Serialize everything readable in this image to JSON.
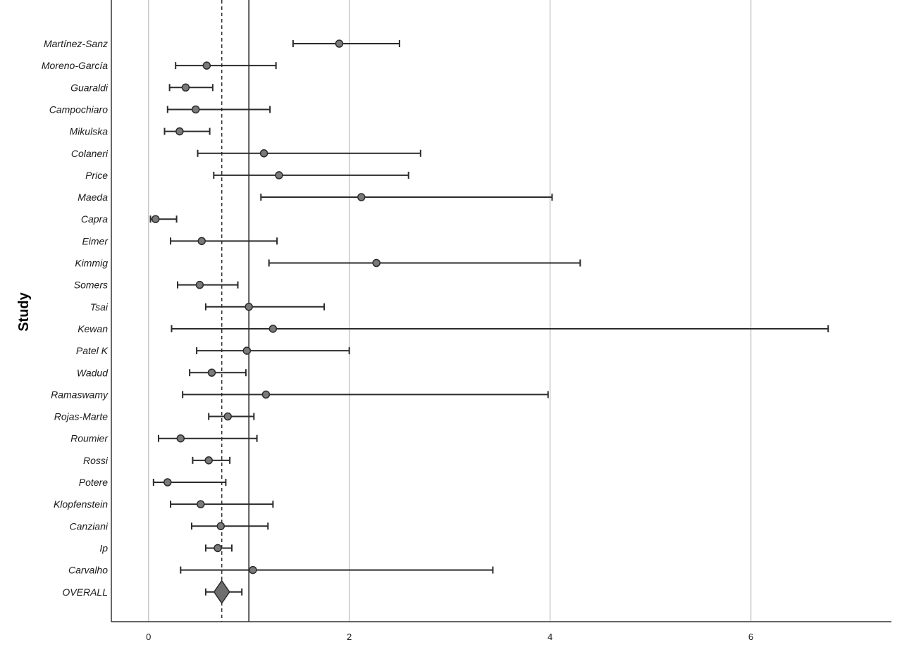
{
  "chart_data": {
    "type": "forest",
    "title": "",
    "xlabel": "",
    "ylabel": "Study",
    "xlim": [
      -0.37,
      7.4
    ],
    "xticks": [
      0,
      2,
      4,
      6
    ],
    "grid": "vertical",
    "reference_line": 1.0,
    "pooled_line": 0.73,
    "colors": {
      "marker_fill": "#7a7a7a",
      "marker_stroke": "#2b2b2b",
      "whisker": "#2b2b2b",
      "grid": "#c8c8c8",
      "axis": "#333333",
      "diamond_fill": "#6e6e6e"
    },
    "studies": [
      {
        "name": "Martínez-Sanz",
        "estimate": 1.9,
        "lower": 1.44,
        "upper": 2.5
      },
      {
        "name": "Moreno-García",
        "estimate": 0.58,
        "lower": 0.27,
        "upper": 1.27
      },
      {
        "name": "Guaraldi",
        "estimate": 0.37,
        "lower": 0.21,
        "upper": 0.64
      },
      {
        "name": "Campochiaro",
        "estimate": 0.47,
        "lower": 0.19,
        "upper": 1.21
      },
      {
        "name": "Mikulska",
        "estimate": 0.31,
        "lower": 0.16,
        "upper": 0.61
      },
      {
        "name": "Colaneri",
        "estimate": 1.15,
        "lower": 0.49,
        "upper": 2.71
      },
      {
        "name": "Price",
        "estimate": 1.3,
        "lower": 0.65,
        "upper": 2.59
      },
      {
        "name": "Maeda",
        "estimate": 2.12,
        "lower": 1.12,
        "upper": 4.02
      },
      {
        "name": "Capra",
        "estimate": 0.07,
        "lower": 0.02,
        "upper": 0.28
      },
      {
        "name": "Eimer",
        "estimate": 0.53,
        "lower": 0.22,
        "upper": 1.28
      },
      {
        "name": "Kimmig",
        "estimate": 2.27,
        "lower": 1.2,
        "upper": 4.3
      },
      {
        "name": "Somers",
        "estimate": 0.51,
        "lower": 0.29,
        "upper": 0.89
      },
      {
        "name": "Tsai",
        "estimate": 1.0,
        "lower": 0.57,
        "upper": 1.75
      },
      {
        "name": "Kewan",
        "estimate": 1.24,
        "lower": 0.23,
        "upper": 6.77
      },
      {
        "name": "Patel K",
        "estimate": 0.98,
        "lower": 0.48,
        "upper": 2.0
      },
      {
        "name": "Wadud",
        "estimate": 0.63,
        "lower": 0.41,
        "upper": 0.97
      },
      {
        "name": "Ramaswamy",
        "estimate": 1.17,
        "lower": 0.34,
        "upper": 3.98
      },
      {
        "name": "Rojas-Marte",
        "estimate": 0.79,
        "lower": 0.6,
        "upper": 1.05
      },
      {
        "name": "Roumier",
        "estimate": 0.32,
        "lower": 0.1,
        "upper": 1.08
      },
      {
        "name": "Rossi",
        "estimate": 0.6,
        "lower": 0.44,
        "upper": 0.81
      },
      {
        "name": "Potere",
        "estimate": 0.19,
        "lower": 0.05,
        "upper": 0.77
      },
      {
        "name": "Klopfenstein",
        "estimate": 0.52,
        "lower": 0.22,
        "upper": 1.24
      },
      {
        "name": "Canziani",
        "estimate": 0.72,
        "lower": 0.43,
        "upper": 1.19
      },
      {
        "name": "Ip",
        "estimate": 0.69,
        "lower": 0.57,
        "upper": 0.83
      },
      {
        "name": "Carvalho",
        "estimate": 1.04,
        "lower": 0.32,
        "upper": 3.43
      }
    ],
    "overall": {
      "name": "OVERALL",
      "estimate": 0.73,
      "lower": 0.57,
      "upper": 0.93
    }
  }
}
